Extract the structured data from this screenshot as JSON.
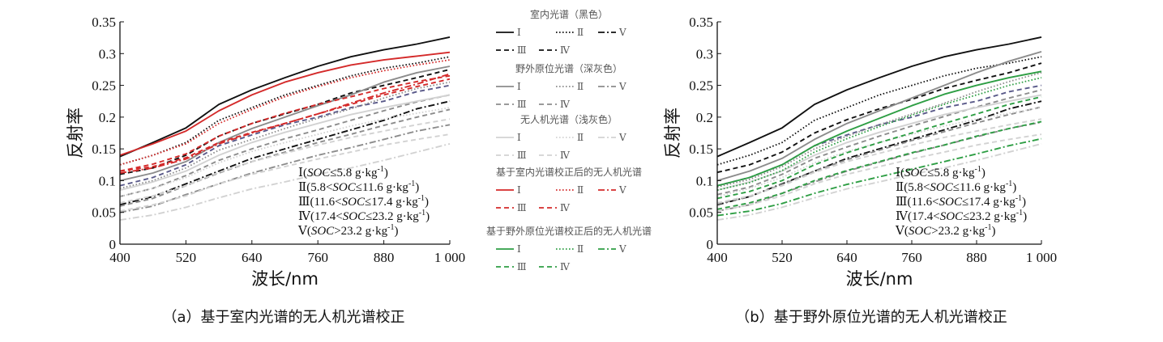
{
  "chart_data": [
    {
      "type": "line",
      "panel": "a",
      "caption": "（a）基于室内光谱的无人机光谱校正",
      "xlabel": "波长/nm",
      "ylabel": "反射率",
      "xlim": [
        400,
        1000
      ],
      "ylim": [
        0,
        0.35
      ],
      "xticks": [
        400,
        520,
        640,
        760,
        880,
        1000
      ],
      "xtick_labels": [
        "400",
        "520",
        "640",
        "760",
        "880",
        "1 000"
      ],
      "yticks": [
        0,
        0.05,
        0.1,
        0.15,
        0.2,
        0.25,
        0.3,
        0.35
      ],
      "ytick_labels": [
        "0",
        "0.05",
        "0.1",
        "0.15",
        "0.2",
        "0.25",
        "0.3",
        "0.35"
      ],
      "annotation": [
        {
          "roman": "Ⅰ",
          "pre": "(",
          "var": "SOC",
          "rel": "≤5.8 g·kg",
          "sup": "-1",
          "post": ")"
        },
        {
          "roman": "Ⅱ",
          "pre": "(5.8<",
          "var": "SOC",
          "rel": "≤11.6 g·kg",
          "sup": "-1",
          "post": ")"
        },
        {
          "roman": "Ⅲ",
          "pre": "(11.6<",
          "var": "SOC",
          "rel": "≤17.4 g·kg",
          "sup": "-1",
          "post": ")"
        },
        {
          "roman": "Ⅳ",
          "pre": "(17.4<",
          "var": "SOC",
          "rel": "≤23.2 g·kg",
          "sup": "-1",
          "post": ")"
        },
        {
          "roman": "Ⅴ",
          "pre": "(",
          "var": "SOC",
          "rel": ">23.2 g·kg",
          "sup": "-1",
          "post": ")"
        }
      ],
      "x": [
        400,
        460,
        520,
        580,
        640,
        700,
        760,
        820,
        880,
        940,
        1000
      ],
      "series": [
        {
          "name": "Ⅰ",
          "group": "室内光谱（黑色）",
          "color": "#111111",
          "dash": "solid",
          "values": [
            0.138,
            0.16,
            0.183,
            0.22,
            0.243,
            0.262,
            0.28,
            0.295,
            0.306,
            0.315,
            0.326
          ]
        },
        {
          "name": "Ⅱ",
          "group": "室内光谱（黑色）",
          "color": "#111111",
          "dash": "dot",
          "values": [
            0.125,
            0.14,
            0.16,
            0.195,
            0.215,
            0.235,
            0.25,
            0.265,
            0.277,
            0.285,
            0.295
          ]
        },
        {
          "name": "Ⅲ",
          "group": "室内光谱（黑色）",
          "color": "#111111",
          "dash": "dash",
          "values": [
            0.11,
            0.12,
            0.14,
            0.17,
            0.19,
            0.205,
            0.22,
            0.238,
            0.25,
            0.262,
            0.275
          ]
        },
        {
          "name": "Ⅳ",
          "group": "室内光谱（黑色）",
          "color": "#5a5a8a",
          "dash": "dash",
          "values": [
            0.092,
            0.105,
            0.125,
            0.155,
            0.172,
            0.188,
            0.2,
            0.215,
            0.225,
            0.24,
            0.25
          ]
        },
        {
          "name": "Ⅴ",
          "group": "室内光谱（黑色）",
          "color": "#111111",
          "dash": "dashdot",
          "values": [
            0.062,
            0.075,
            0.095,
            0.115,
            0.135,
            0.15,
            0.165,
            0.18,
            0.195,
            0.213,
            0.225
          ]
        },
        {
          "name": "Ⅰ",
          "group": "野外原位光谱（深灰色）",
          "color": "#8c8c8c",
          "dash": "solid",
          "values": [
            0.1,
            0.112,
            0.13,
            0.16,
            0.182,
            0.2,
            0.218,
            0.235,
            0.255,
            0.27,
            0.28
          ]
        },
        {
          "name": "Ⅱ",
          "group": "野外原位光谱（深灰色）",
          "color": "#8c8c8c",
          "dash": "dot",
          "values": [
            0.088,
            0.1,
            0.12,
            0.148,
            0.165,
            0.182,
            0.198,
            0.213,
            0.23,
            0.245,
            0.255
          ]
        },
        {
          "name": "Ⅲ",
          "group": "野外原位光谱（深灰色）",
          "color": "#8c8c8c",
          "dash": "dash",
          "values": [
            0.075,
            0.088,
            0.108,
            0.132,
            0.15,
            0.166,
            0.18,
            0.195,
            0.21,
            0.224,
            0.235
          ]
        },
        {
          "name": "Ⅳ",
          "group": "野外原位光谱（深灰色）",
          "color": "#8c8c8c",
          "dash": "dash",
          "values": [
            0.06,
            0.072,
            0.092,
            0.112,
            0.13,
            0.145,
            0.16,
            0.173,
            0.187,
            0.2,
            0.212
          ]
        },
        {
          "name": "Ⅴ",
          "group": "野外原位光谱（深灰色）",
          "color": "#8c8c8c",
          "dash": "dashdot",
          "values": [
            0.05,
            0.06,
            0.078,
            0.095,
            0.112,
            0.126,
            0.14,
            0.152,
            0.165,
            0.178,
            0.188
          ]
        },
        {
          "name": "Ⅰ",
          "group": "无人机光谱（浅灰色）",
          "color": "#d2d2d2",
          "dash": "solid",
          "values": [
            0.085,
            0.098,
            0.115,
            0.14,
            0.16,
            0.176,
            0.19,
            0.204,
            0.215,
            0.225,
            0.235
          ]
        },
        {
          "name": "Ⅱ",
          "group": "无人机光谱（浅灰色）",
          "color": "#d2d2d2",
          "dash": "dot",
          "values": [
            0.075,
            0.088,
            0.105,
            0.128,
            0.146,
            0.16,
            0.173,
            0.186,
            0.197,
            0.206,
            0.215
          ]
        },
        {
          "name": "Ⅲ",
          "group": "无人机光谱（浅灰色）",
          "color": "#d2d2d2",
          "dash": "dash",
          "values": [
            0.065,
            0.076,
            0.092,
            0.113,
            0.13,
            0.143,
            0.156,
            0.168,
            0.178,
            0.188,
            0.197
          ]
        },
        {
          "name": "Ⅳ",
          "group": "无人机光谱（浅灰色）",
          "color": "#d2d2d2",
          "dash": "dash",
          "values": [
            0.052,
            0.062,
            0.076,
            0.095,
            0.11,
            0.122,
            0.134,
            0.145,
            0.156,
            0.165,
            0.173
          ]
        },
        {
          "name": "Ⅴ",
          "group": "无人机光谱（浅灰色）",
          "color": "#d2d2d2",
          "dash": "dashdot",
          "values": [
            0.038,
            0.046,
            0.058,
            0.073,
            0.087,
            0.098,
            0.11,
            0.12,
            0.132,
            0.145,
            0.158
          ]
        },
        {
          "name": "Ⅰ",
          "group": "基于室内光谱校正后的无人机光谱",
          "color": "#d42a2a",
          "dash": "solid",
          "values": [
            0.14,
            0.158,
            0.178,
            0.21,
            0.235,
            0.255,
            0.27,
            0.282,
            0.29,
            0.296,
            0.302
          ]
        },
        {
          "name": "Ⅱ",
          "group": "基于室内光谱校正后的无人机光谱",
          "color": "#d42a2a",
          "dash": "dot",
          "values": [
            0.125,
            0.14,
            0.158,
            0.19,
            0.212,
            0.232,
            0.248,
            0.262,
            0.273,
            0.282,
            0.29
          ]
        },
        {
          "name": "Ⅲ",
          "group": "基于室内光谱校正后的无人机光谱",
          "color": "#d42a2a",
          "dash": "dash",
          "values": [
            0.115,
            0.126,
            0.142,
            0.17,
            0.19,
            0.206,
            0.22,
            0.232,
            0.245,
            0.256,
            0.265
          ]
        },
        {
          "name": "Ⅳ",
          "group": "基于室内光谱校正后的无人机光谱",
          "color": "#d42a2a",
          "dash": "dash",
          "values": [
            0.115,
            0.122,
            0.136,
            0.16,
            0.176,
            0.19,
            0.205,
            0.22,
            0.235,
            0.248,
            0.26
          ]
        },
        {
          "name": "Ⅴ",
          "group": "基于室内光谱校正后的无人机光谱",
          "color": "#d42a2a",
          "dash": "dashdot",
          "values": [
            0.112,
            0.12,
            0.134,
            0.158,
            0.175,
            0.19,
            0.205,
            0.222,
            0.238,
            0.252,
            0.268
          ]
        }
      ]
    },
    {
      "type": "line",
      "panel": "b",
      "caption": "（b）基于野外原位光谱的无人机光谱校正",
      "xlabel": "波长/nm",
      "ylabel": "反射率",
      "xlim": [
        400,
        1000
      ],
      "ylim": [
        0,
        0.35
      ],
      "xticks": [
        400,
        520,
        640,
        760,
        880,
        1000
      ],
      "xtick_labels": [
        "400",
        "520",
        "640",
        "760",
        "880",
        "1 000"
      ],
      "yticks": [
        0,
        0.05,
        0.1,
        0.15,
        0.2,
        0.25,
        0.3,
        0.35
      ],
      "ytick_labels": [
        "0",
        "0.05",
        "0.1",
        "0.15",
        "0.2",
        "0.25",
        "0.3",
        "0.35"
      ],
      "annotation": [
        {
          "roman": "Ⅰ",
          "pre": "(",
          "var": "SOC",
          "rel": "≤5.8 g·kg",
          "sup": "-1",
          "post": ")"
        },
        {
          "roman": "Ⅱ",
          "pre": "(5.8<",
          "var": "SOC",
          "rel": "≤11.6 g·kg",
          "sup": "-1",
          "post": ")"
        },
        {
          "roman": "Ⅲ",
          "pre": "(11.6<",
          "var": "SOC",
          "rel": "≤17.4 g·kg",
          "sup": "-1",
          "post": ")"
        },
        {
          "roman": "Ⅳ",
          "pre": "(17.4<",
          "var": "SOC",
          "rel": "≤23.2 g·kg",
          "sup": "-1",
          "post": ")"
        },
        {
          "roman": "Ⅴ",
          "pre": "(",
          "var": "SOC",
          "rel": ">23.2 g·kg",
          "sup": "-1",
          "post": ")"
        }
      ],
      "x": [
        400,
        460,
        520,
        580,
        640,
        700,
        760,
        820,
        880,
        940,
        1000
      ],
      "series": [
        {
          "name": "Ⅰ",
          "group": "室内光谱（黑色）",
          "color": "#111111",
          "dash": "solid",
          "values": [
            0.138,
            0.16,
            0.183,
            0.22,
            0.243,
            0.262,
            0.28,
            0.295,
            0.306,
            0.315,
            0.326
          ]
        },
        {
          "name": "Ⅱ",
          "group": "室内光谱（黑色）",
          "color": "#111111",
          "dash": "dot",
          "values": [
            0.125,
            0.14,
            0.16,
            0.195,
            0.215,
            0.235,
            0.25,
            0.265,
            0.277,
            0.285,
            0.295
          ]
        },
        {
          "name": "Ⅲ",
          "group": "室内光谱（黑色）",
          "color": "#111111",
          "dash": "dash",
          "values": [
            0.113,
            0.125,
            0.145,
            0.175,
            0.196,
            0.213,
            0.228,
            0.245,
            0.258,
            0.27,
            0.285
          ]
        },
        {
          "name": "Ⅳ",
          "group": "室内光谱（黑色）",
          "color": "#5a5a8a",
          "dash": "dash",
          "values": [
            0.092,
            0.105,
            0.125,
            0.155,
            0.172,
            0.188,
            0.2,
            0.215,
            0.225,
            0.24,
            0.25
          ]
        },
        {
          "name": "Ⅴ",
          "group": "室内光谱（黑色）",
          "color": "#111111",
          "dash": "dashdot",
          "values": [
            0.062,
            0.075,
            0.095,
            0.115,
            0.135,
            0.15,
            0.165,
            0.18,
            0.195,
            0.213,
            0.225
          ]
        },
        {
          "name": "Ⅰ",
          "group": "野外原位光谱（深灰色）",
          "color": "#8c8c8c",
          "dash": "solid",
          "values": [
            0.1,
            0.115,
            0.135,
            0.165,
            0.19,
            0.21,
            0.23,
            0.25,
            0.27,
            0.288,
            0.303
          ]
        },
        {
          "name": "Ⅱ",
          "group": "野外原位光谱（深灰色）",
          "color": "#8c8c8c",
          "dash": "dot",
          "values": [
            0.09,
            0.102,
            0.122,
            0.15,
            0.17,
            0.188,
            0.205,
            0.222,
            0.24,
            0.256,
            0.27
          ]
        },
        {
          "name": "Ⅲ",
          "group": "野外原位光谱（深灰色）",
          "color": "#8c8c8c",
          "dash": "dash",
          "values": [
            0.078,
            0.09,
            0.11,
            0.135,
            0.153,
            0.17,
            0.186,
            0.201,
            0.216,
            0.23,
            0.243
          ]
        },
        {
          "name": "Ⅳ",
          "group": "野外原位光谱（深灰色）",
          "color": "#8c8c8c",
          "dash": "dash",
          "values": [
            0.063,
            0.075,
            0.094,
            0.115,
            0.133,
            0.148,
            0.163,
            0.177,
            0.191,
            0.204,
            0.216
          ]
        },
        {
          "name": "Ⅴ",
          "group": "野外原位光谱（深灰色）",
          "color": "#8c8c8c",
          "dash": "dashdot",
          "values": [
            0.052,
            0.062,
            0.08,
            0.098,
            0.115,
            0.129,
            0.143,
            0.156,
            0.169,
            0.182,
            0.192
          ]
        },
        {
          "name": "Ⅰ",
          "group": "无人机光谱（浅灰色）",
          "color": "#d2d2d2",
          "dash": "solid",
          "values": [
            0.085,
            0.098,
            0.115,
            0.14,
            0.16,
            0.176,
            0.19,
            0.204,
            0.215,
            0.225,
            0.235
          ]
        },
        {
          "name": "Ⅱ",
          "group": "无人机光谱（浅灰色）",
          "color": "#d2d2d2",
          "dash": "dot",
          "values": [
            0.075,
            0.088,
            0.105,
            0.128,
            0.146,
            0.16,
            0.173,
            0.186,
            0.197,
            0.206,
            0.215
          ]
        },
        {
          "name": "Ⅲ",
          "group": "无人机光谱（浅灰色）",
          "color": "#d2d2d2",
          "dash": "dash",
          "values": [
            0.065,
            0.076,
            0.092,
            0.113,
            0.13,
            0.143,
            0.156,
            0.168,
            0.178,
            0.188,
            0.197
          ]
        },
        {
          "name": "Ⅳ",
          "group": "无人机光谱（浅灰色）",
          "color": "#d2d2d2",
          "dash": "dash",
          "values": [
            0.052,
            0.062,
            0.076,
            0.095,
            0.11,
            0.122,
            0.134,
            0.145,
            0.156,
            0.165,
            0.173
          ]
        },
        {
          "name": "Ⅴ",
          "group": "无人机光谱（浅灰色）",
          "color": "#d2d2d2",
          "dash": "dashdot",
          "values": [
            0.038,
            0.046,
            0.058,
            0.073,
            0.087,
            0.098,
            0.11,
            0.12,
            0.132,
            0.145,
            0.158
          ]
        },
        {
          "name": "Ⅰ",
          "group": "基于野外原位光谱校正后的无人机光谱",
          "color": "#2e9e44",
          "dash": "solid",
          "values": [
            0.092,
            0.105,
            0.125,
            0.155,
            0.178,
            0.198,
            0.218,
            0.236,
            0.25,
            0.262,
            0.272
          ]
        },
        {
          "name": "Ⅱ",
          "group": "基于野外原位光谱校正后的无人机光谱",
          "color": "#2e9e44",
          "dash": "dot",
          "values": [
            0.085,
            0.097,
            0.116,
            0.145,
            0.166,
            0.185,
            0.203,
            0.22,
            0.235,
            0.25,
            0.262
          ]
        },
        {
          "name": "Ⅲ",
          "group": "基于野外原位光谱校正后的无人机光谱",
          "color": "#2e9e44",
          "dash": "dash",
          "values": [
            0.072,
            0.083,
            0.1,
            0.125,
            0.144,
            0.16,
            0.175,
            0.19,
            0.205,
            0.22,
            0.232
          ]
        },
        {
          "name": "Ⅳ",
          "group": "基于野外原位光谱校正后的无人机光谱",
          "color": "#2e9e44",
          "dash": "dash",
          "values": [
            0.055,
            0.065,
            0.08,
            0.1,
            0.116,
            0.13,
            0.144,
            0.156,
            0.17,
            0.182,
            0.193
          ]
        },
        {
          "name": "Ⅴ",
          "group": "基于野外原位光谱校正后的无人机光谱",
          "color": "#2e9e44",
          "dash": "dashdot",
          "values": [
            0.045,
            0.052,
            0.064,
            0.08,
            0.094,
            0.106,
            0.118,
            0.13,
            0.142,
            0.155,
            0.166
          ]
        }
      ]
    }
  ],
  "legend": {
    "groups": [
      {
        "title": "室内光谱（黑色）",
        "color": "#111111"
      },
      {
        "title": "野外原位光谱（深灰色）",
        "color": "#8c8c8c"
      },
      {
        "title": "无人机光谱（浅灰色）",
        "color": "#d2d2d2"
      },
      {
        "title": "基于室内光谱校正后的无人机光谱",
        "color": "#d42a2a"
      },
      {
        "title": "基于野外原位光谱校正后的无人机光谱",
        "color": "#2e9e44"
      }
    ],
    "numerals": [
      "Ⅰ",
      "Ⅱ",
      "Ⅴ",
      "Ⅲ",
      "Ⅳ"
    ],
    "styles": [
      "solid",
      "dot",
      "dashdot",
      "dash",
      "dash"
    ]
  }
}
